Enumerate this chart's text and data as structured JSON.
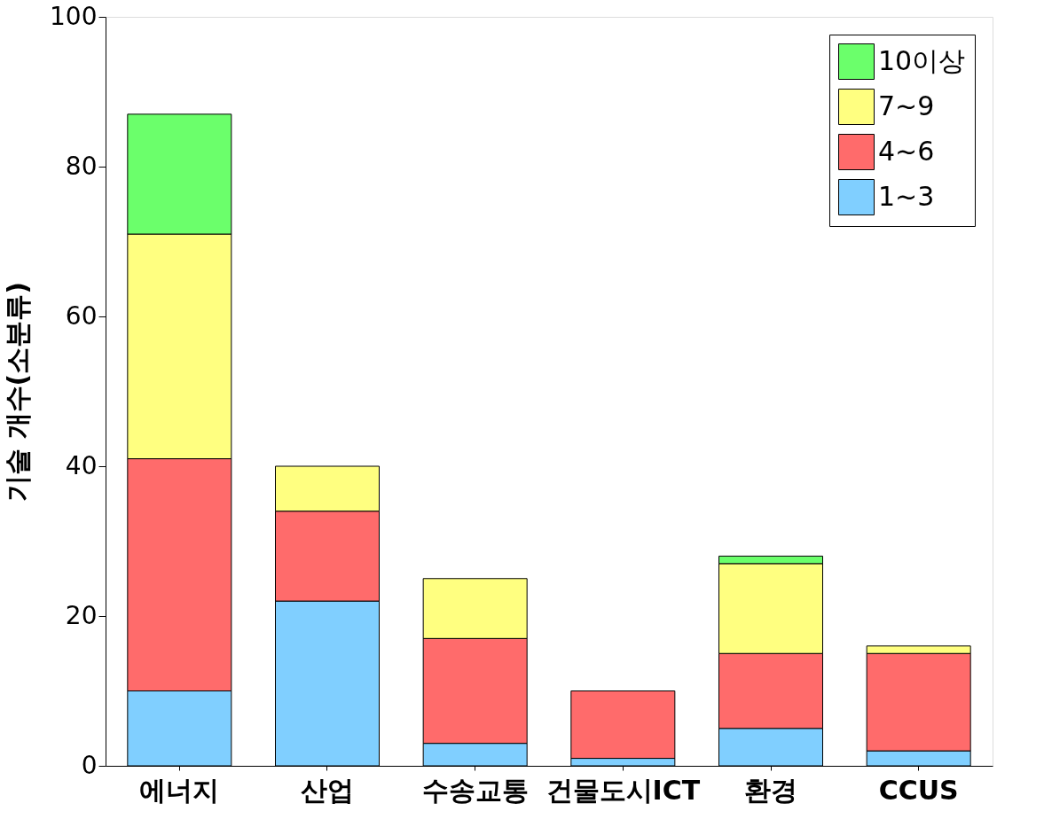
{
  "chart_data": {
    "type": "bar",
    "stacked": true,
    "ylabel": "기술 개수(소분류)",
    "categories": [
      "에너지",
      "산업",
      "수송교통",
      "건물도시ICT",
      "환경",
      "CCUS"
    ],
    "series": [
      {
        "name": "1~3",
        "color": "#80cfff",
        "values": [
          10,
          22,
          3,
          1,
          5,
          2
        ]
      },
      {
        "name": "4~6",
        "color": "#ff6b6b",
        "values": [
          31,
          12,
          14,
          9,
          10,
          13
        ]
      },
      {
        "name": "7~9",
        "color": "#ffff80",
        "values": [
          30,
          6,
          8,
          0,
          12,
          1
        ]
      },
      {
        "name": "10이상",
        "color": "#6bff6b",
        "values": [
          16,
          0,
          0,
          0,
          1,
          0
        ]
      }
    ],
    "ylim": [
      0,
      100
    ],
    "yticks": [
      0,
      20,
      40,
      60,
      80,
      100
    ],
    "grid": false,
    "legend": "top right"
  }
}
